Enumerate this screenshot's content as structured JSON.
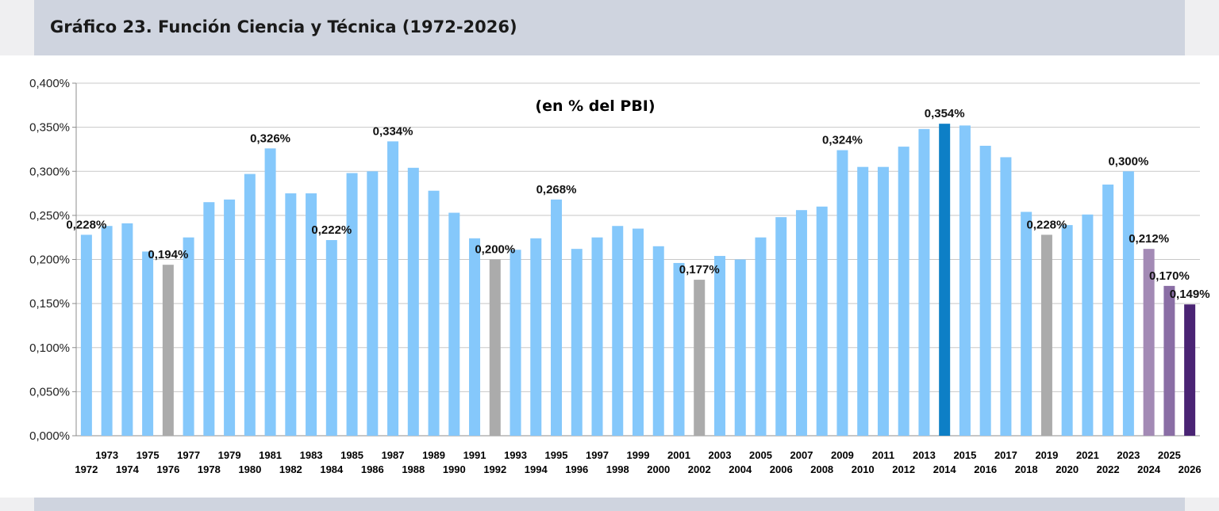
{
  "title": "Gráfico 23. Función Ciencia y Técnica (1972-2026)",
  "colors": {
    "default": "#85c8fb",
    "highlight_max": "#0d7fc6",
    "grey": "#ababab",
    "projection_light": "#a38ab5",
    "projection_mid": "#8a6ea5",
    "projection_dark": "#4a2474"
  },
  "chart_data": {
    "type": "bar",
    "subtitle": "(en % del PBI)",
    "ylim": [
      0,
      0.4
    ],
    "ytick_step": 0.05,
    "ytick_labels": [
      "0,000%",
      "0,050%",
      "0,100%",
      "0,150%",
      "0,200%",
      "0,250%",
      "0,300%",
      "0,350%",
      "0,400%"
    ],
    "grid": true,
    "categories": [
      "1972",
      "1973",
      "1974",
      "1975",
      "1976",
      "1977",
      "1978",
      "1979",
      "1980",
      "1981",
      "1982",
      "1983",
      "1984",
      "1985",
      "1986",
      "1987",
      "1988",
      "1989",
      "1990",
      "1991",
      "1992",
      "1993",
      "1994",
      "1995",
      "1996",
      "1997",
      "1998",
      "1999",
      "2000",
      "2001",
      "2002",
      "2003",
      "2004",
      "2005",
      "2006",
      "2007",
      "2008",
      "2009",
      "2010",
      "2011",
      "2012",
      "2013",
      "2014",
      "2015",
      "2016",
      "2017",
      "2018",
      "2019",
      "2020",
      "2021",
      "2022",
      "2023",
      "2024",
      "2025",
      "2026"
    ],
    "values": [
      0.228,
      0.238,
      0.241,
      0.209,
      0.194,
      0.225,
      0.265,
      0.268,
      0.297,
      0.326,
      0.275,
      0.275,
      0.222,
      0.298,
      0.3,
      0.334,
      0.304,
      0.278,
      0.253,
      0.224,
      0.2,
      0.211,
      0.224,
      0.268,
      0.212,
      0.225,
      0.238,
      0.235,
      0.215,
      0.196,
      0.177,
      0.204,
      0.2,
      0.225,
      0.248,
      0.256,
      0.26,
      0.324,
      0.305,
      0.305,
      0.328,
      0.348,
      0.354,
      0.352,
      0.329,
      0.316,
      0.254,
      0.228,
      0.239,
      0.251,
      0.285,
      0.3,
      0.212,
      0.17,
      0.149
    ],
    "bar_colors": [
      "default",
      "default",
      "default",
      "default",
      "grey",
      "default",
      "default",
      "default",
      "default",
      "default",
      "default",
      "default",
      "default",
      "default",
      "default",
      "default",
      "default",
      "default",
      "default",
      "default",
      "grey",
      "default",
      "default",
      "default",
      "default",
      "default",
      "default",
      "default",
      "default",
      "default",
      "grey",
      "default",
      "default",
      "default",
      "default",
      "default",
      "default",
      "default",
      "default",
      "default",
      "default",
      "default",
      "highlight_max",
      "default",
      "default",
      "default",
      "default",
      "grey",
      "default",
      "default",
      "default",
      "default",
      "projection_light",
      "projection_mid",
      "projection_dark"
    ],
    "data_labels": [
      {
        "category": "1972",
        "label": "0,228%"
      },
      {
        "category": "1976",
        "label": "0,194%"
      },
      {
        "category": "1981",
        "label": "0,326%"
      },
      {
        "category": "1984",
        "label": "0,222%"
      },
      {
        "category": "1987",
        "label": "0,334%"
      },
      {
        "category": "1992",
        "label": "0,200%"
      },
      {
        "category": "1995",
        "label": "0,268%"
      },
      {
        "category": "2002",
        "label": "0,177%"
      },
      {
        "category": "2009",
        "label": "0,324%"
      },
      {
        "category": "2014",
        "label": "0,354%"
      },
      {
        "category": "2019",
        "label": "0,228%"
      },
      {
        "category": "2023",
        "label": "0,300%"
      },
      {
        "category": "2024",
        "label": "0,212%"
      },
      {
        "category": "2025",
        "label": "0,170%"
      },
      {
        "category": "2026",
        "label": "0,149%"
      }
    ]
  }
}
